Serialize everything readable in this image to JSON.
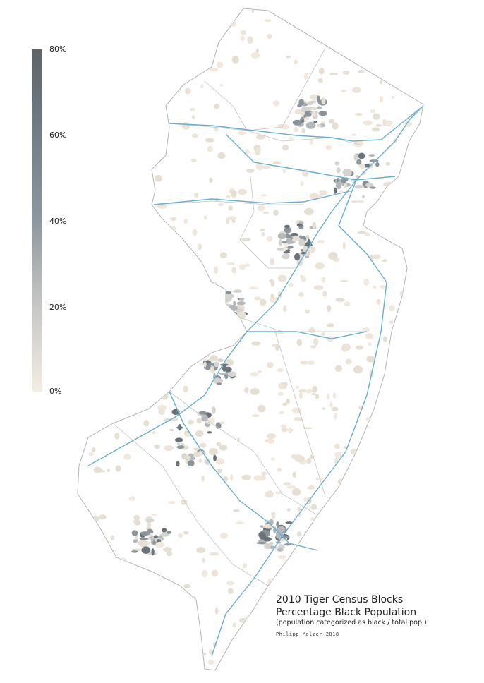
{
  "legend": {
    "ticks": [
      "80%",
      "60%",
      "40%",
      "20%",
      "0%"
    ],
    "color_low": "#f4ede4",
    "color_high": "#5e6469"
  },
  "title": {
    "line1": "2010 Tiger Census Blocks",
    "line2": "Percentage Black Population",
    "subtitle": "(population categorized as black / total pop.)",
    "credit": "Philipp Molzer 2018"
  },
  "colors": {
    "highway": "#6aaed0",
    "border": "#b5b5b5",
    "block_light": "#efe8de"
  }
}
